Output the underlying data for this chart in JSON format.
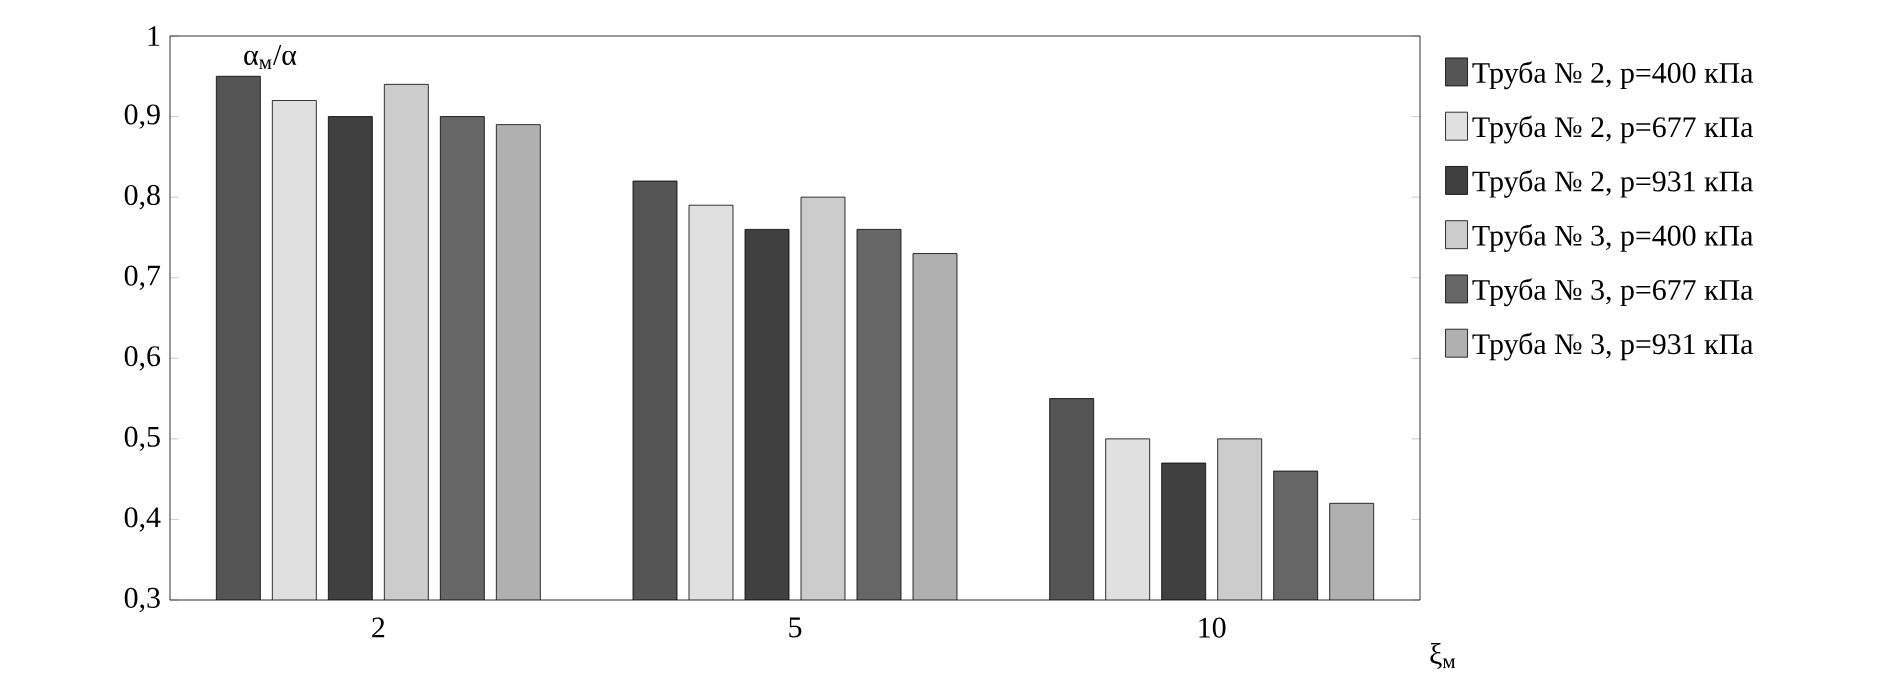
{
  "chart_data": {
    "type": "bar",
    "ylabel": "α$_{м}$/α",
    "xlabel": "ξ$_{м}$",
    "categories": [
      "2",
      "5",
      "10"
    ],
    "series": [
      {
        "name": "Труба № 2, p=400 кПа",
        "color": "#555555",
        "values": [
          0.95,
          0.82,
          0.55
        ]
      },
      {
        "name": "Труба № 2, p=677 кПа",
        "color": "#e0e0e0",
        "values": [
          0.92,
          0.79,
          0.5
        ]
      },
      {
        "name": "Труба № 2, p=931 кПа",
        "color": "#404040",
        "values": [
          0.9,
          0.76,
          0.47
        ]
      },
      {
        "name": "Труба № 3, p=400 кПа",
        "color": "#cccccc",
        "values": [
          0.94,
          0.8,
          0.5
        ]
      },
      {
        "name": "Труба № 3, p=677 кПа",
        "color": "#666666",
        "values": [
          0.9,
          0.76,
          0.46
        ]
      },
      {
        "name": "Труба № 3, p=931 кПа",
        "color": "#b0b0b0",
        "values": [
          0.89,
          0.73,
          0.42
        ]
      }
    ],
    "ylim": [
      0.3,
      1
    ],
    "yticks": [
      {
        "value": 0.3,
        "label": "0,3"
      },
      {
        "value": 0.4,
        "label": "0,4"
      },
      {
        "value": 0.5,
        "label": "0,5"
      },
      {
        "value": 0.6,
        "label": "0,6"
      },
      {
        "value": 0.7,
        "label": "0,7"
      },
      {
        "value": 0.8,
        "label": "0,8"
      },
      {
        "value": 0.9,
        "label": "0,9"
      },
      {
        "value": 1,
        "label": "1"
      }
    ],
    "legend": "right",
    "grid": false
  }
}
